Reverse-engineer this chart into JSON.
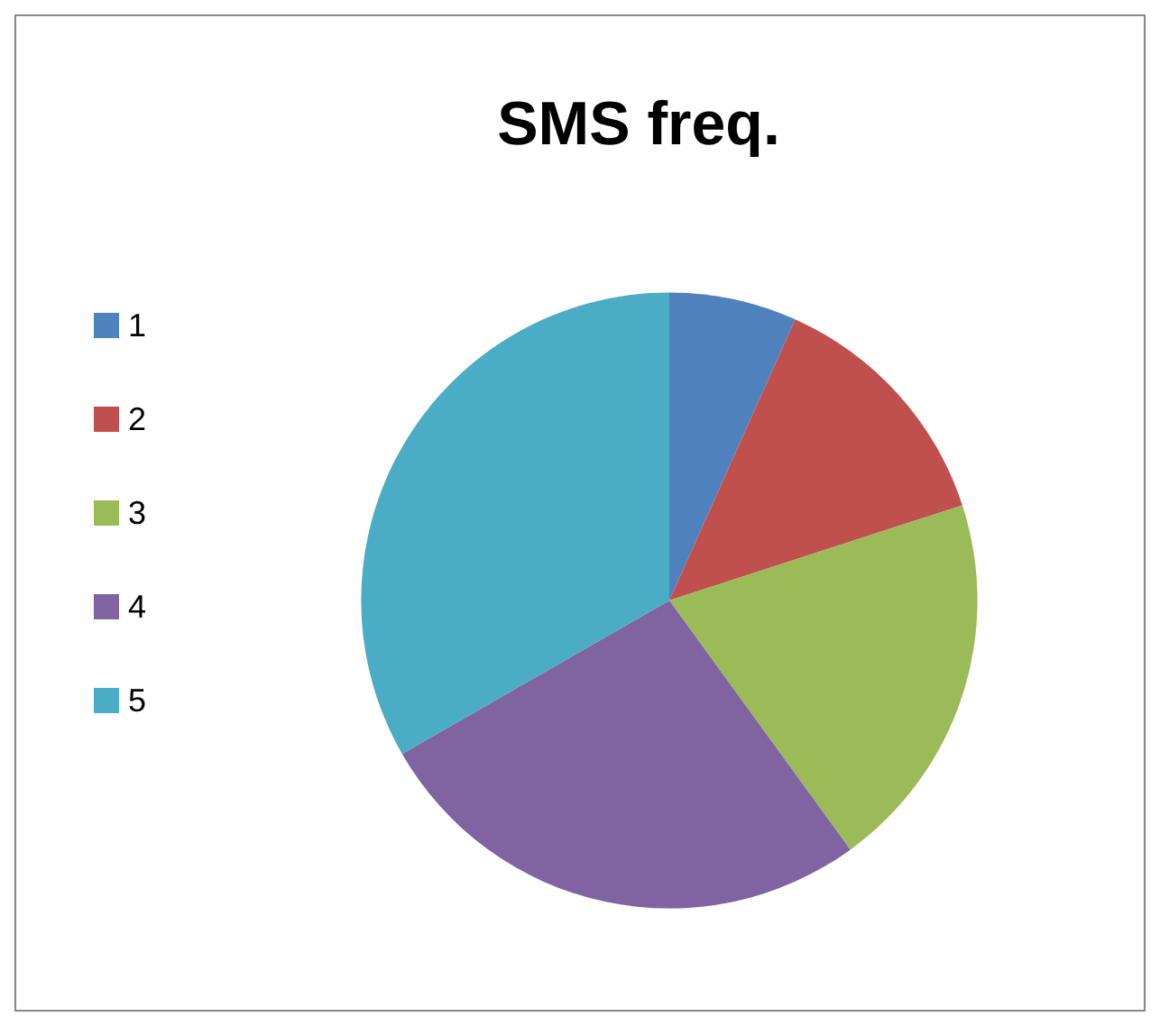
{
  "chart_data": {
    "type": "pie",
    "title": "SMS freq.",
    "categories": [
      "1",
      "2",
      "3",
      "4",
      "5"
    ],
    "values": [
      6.7,
      13.3,
      20,
      26.7,
      33.3
    ],
    "colors": [
      "#4f81bd",
      "#c0504d",
      "#9bbb59",
      "#8064a2",
      "#4bacc6"
    ],
    "legend": "left"
  }
}
